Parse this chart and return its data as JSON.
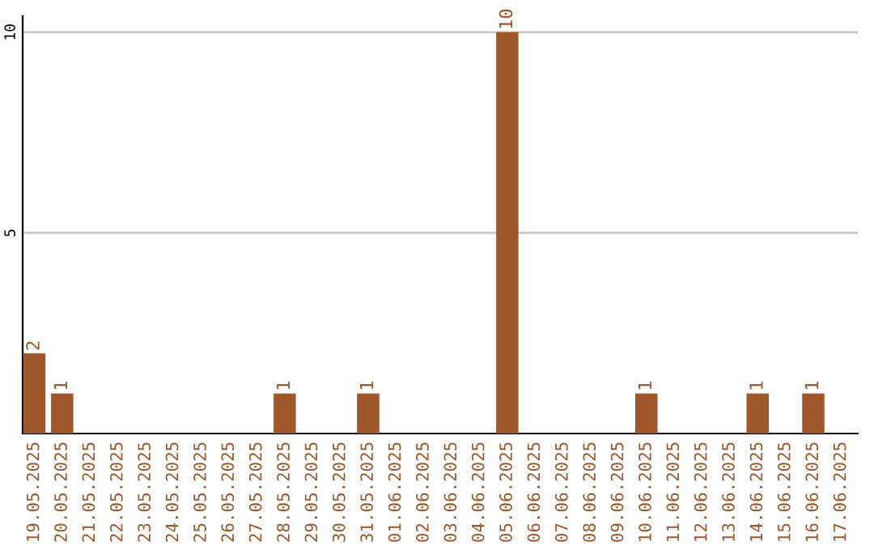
{
  "chart_data": {
    "type": "bar",
    "categories": [
      "19.05.2025",
      "20.05.2025",
      "21.05.2025",
      "22.05.2025",
      "23.05.2025",
      "24.05.2025",
      "25.05.2025",
      "26.05.2025",
      "27.05.2025",
      "28.05.2025",
      "29.05.2025",
      "30.05.2025",
      "31.05.2025",
      "01.06.2025",
      "02.06.2025",
      "03.06.2025",
      "04.06.2025",
      "05.06.2025",
      "06.06.2025",
      "07.06.2025",
      "08.06.2025",
      "09.06.2025",
      "10.06.2025",
      "11.06.2025",
      "12.06.2025",
      "13.06.2025",
      "14.06.2025",
      "15.06.2025",
      "16.06.2025",
      "17.06.2025"
    ],
    "values": [
      2,
      1,
      0,
      0,
      0,
      0,
      0,
      0,
      0,
      1,
      0,
      0,
      1,
      0,
      0,
      0,
      0,
      10,
      0,
      0,
      0,
      0,
      1,
      0,
      0,
      0,
      1,
      0,
      1,
      0
    ],
    "value_labels": [
      "2",
      "1",
      null,
      null,
      null,
      null,
      null,
      null,
      null,
      "1",
      null,
      null,
      "1",
      null,
      null,
      null,
      null,
      "10",
      null,
      null,
      null,
      null,
      "1",
      null,
      null,
      null,
      "1",
      null,
      "1",
      null
    ],
    "color": "#a0572a",
    "ylim": [
      0,
      10.4
    ],
    "yticks": [
      5,
      10
    ],
    "grid": "y"
  }
}
